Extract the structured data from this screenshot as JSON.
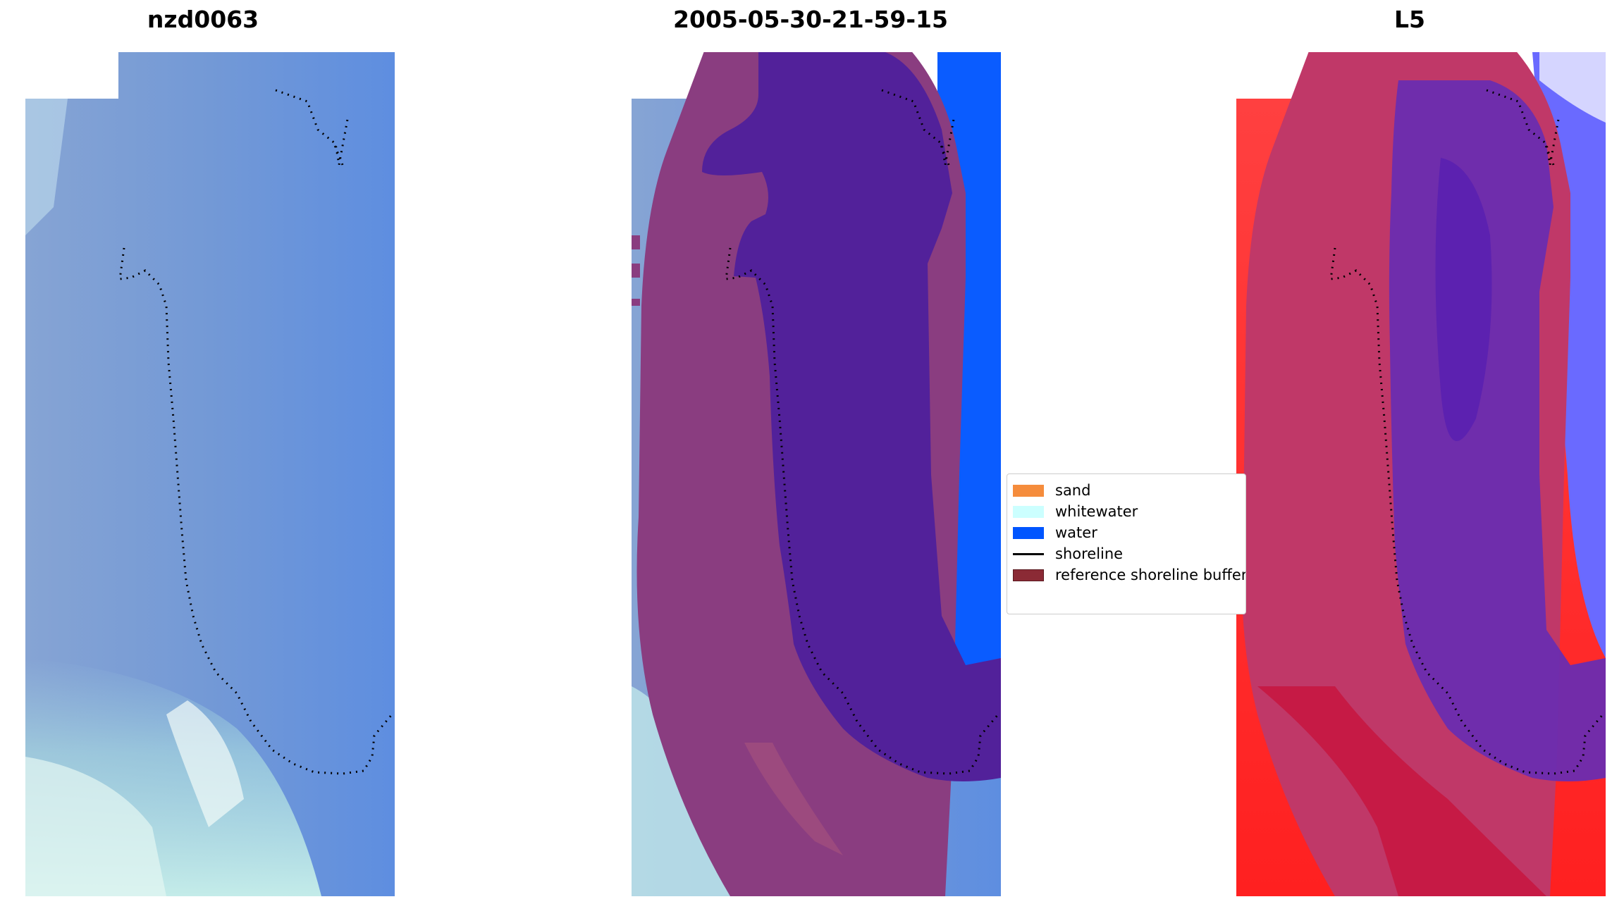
{
  "panels": [
    {
      "title": "nzd0063"
    },
    {
      "title": "2005-05-30-21-59-15"
    },
    {
      "title": "L5"
    }
  ],
  "legend": {
    "items": [
      {
        "label": "sand",
        "kind": "patch",
        "color": "#f58c3c"
      },
      {
        "label": "whitewater",
        "kind": "patch",
        "color": "#ccffff"
      },
      {
        "label": "water",
        "kind": "patch",
        "color": "#0055ff"
      },
      {
        "label": "shoreline",
        "kind": "line",
        "color": "#000000"
      },
      {
        "label": "reference shoreline buffer",
        "kind": "patch",
        "color": "#8b2a35"
      }
    ]
  },
  "colors": {
    "imagery_base": "#7aa0d8",
    "classified_land_buffer": "#8a3d80",
    "classified_water_in_buffer": "#52219a",
    "classified_water": "#0a5cff",
    "index_land": "#c03868",
    "index_strong_land": "#ff2a2a",
    "index_water": "#5a20b0",
    "index_strong_water": "#5555ff"
  }
}
